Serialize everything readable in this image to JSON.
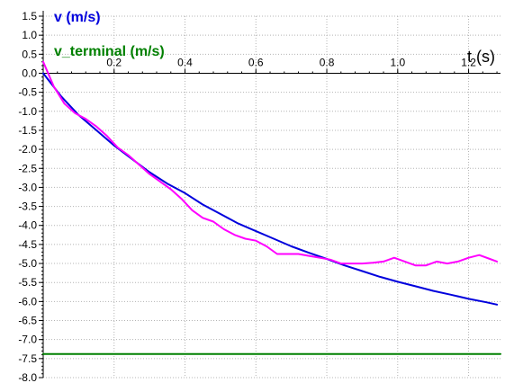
{
  "chart_data": {
    "type": "line",
    "xlabel": "t (s)",
    "ylabel": "",
    "xlim": [
      0.0,
      1.29
    ],
    "ylim": [
      -8.0,
      1.5
    ],
    "grid": true,
    "xticks": [
      "0.2",
      "0.4",
      "0.6",
      "0.8",
      "1.0",
      "1.2"
    ],
    "yticks": [
      "1.5",
      "1.0",
      "0.5",
      "0.0",
      "-0.5",
      "-1.0",
      "-1.5",
      "-2.0",
      "-2.5",
      "-3.0",
      "-3.5",
      "-4.0",
      "-4.5",
      "-5.0",
      "-5.5",
      "-6.0",
      "-6.5",
      "-7.0",
      "-7.5",
      "-8.0"
    ],
    "legend_position": "top-left",
    "series": [
      {
        "name": "v (m/s)",
        "color": "#0000dd",
        "x": [
          0.0,
          0.05,
          0.1,
          0.15,
          0.2,
          0.25,
          0.3,
          0.35,
          0.4,
          0.45,
          0.5,
          0.55,
          0.6,
          0.65,
          0.7,
          0.75,
          0.8,
          0.85,
          0.9,
          0.95,
          1.0,
          1.05,
          1.1,
          1.15,
          1.2,
          1.25,
          1.28
        ],
        "y": [
          0.0,
          -0.6,
          -1.1,
          -1.5,
          -1.9,
          -2.25,
          -2.6,
          -2.9,
          -3.15,
          -3.45,
          -3.7,
          -3.95,
          -4.15,
          -4.35,
          -4.55,
          -4.72,
          -4.88,
          -5.05,
          -5.2,
          -5.35,
          -5.48,
          -5.6,
          -5.72,
          -5.82,
          -5.93,
          -6.02,
          -6.08
        ]
      },
      {
        "name": "",
        "color": "#ff00ff",
        "x": [
          0.0,
          0.03,
          0.06,
          0.09,
          0.12,
          0.15,
          0.18,
          0.21,
          0.24,
          0.27,
          0.3,
          0.33,
          0.36,
          0.39,
          0.42,
          0.45,
          0.48,
          0.51,
          0.54,
          0.57,
          0.6,
          0.63,
          0.66,
          0.69,
          0.72,
          0.75,
          0.78,
          0.81,
          0.84,
          0.87,
          0.9,
          0.93,
          0.96,
          0.99,
          1.02,
          1.05,
          1.08,
          1.11,
          1.14,
          1.17,
          1.2,
          1.23,
          1.26,
          1.28
        ],
        "y": [
          0.3,
          -0.35,
          -0.8,
          -1.05,
          -1.2,
          -1.4,
          -1.65,
          -1.95,
          -2.15,
          -2.4,
          -2.65,
          -2.85,
          -3.05,
          -3.3,
          -3.6,
          -3.8,
          -3.9,
          -4.1,
          -4.25,
          -4.35,
          -4.4,
          -4.55,
          -4.75,
          -4.75,
          -4.75,
          -4.8,
          -4.85,
          -4.9,
          -5.0,
          -5.0,
          -5.0,
          -4.98,
          -4.95,
          -4.85,
          -4.95,
          -5.05,
          -5.05,
          -4.95,
          -5.0,
          -4.95,
          -4.85,
          -4.78,
          -4.88,
          -4.95
        ]
      },
      {
        "name": "v_terminal (m/s)",
        "color": "#008000",
        "x": [
          0.0,
          1.29
        ],
        "y": [
          -7.38,
          -7.38
        ]
      }
    ]
  }
}
